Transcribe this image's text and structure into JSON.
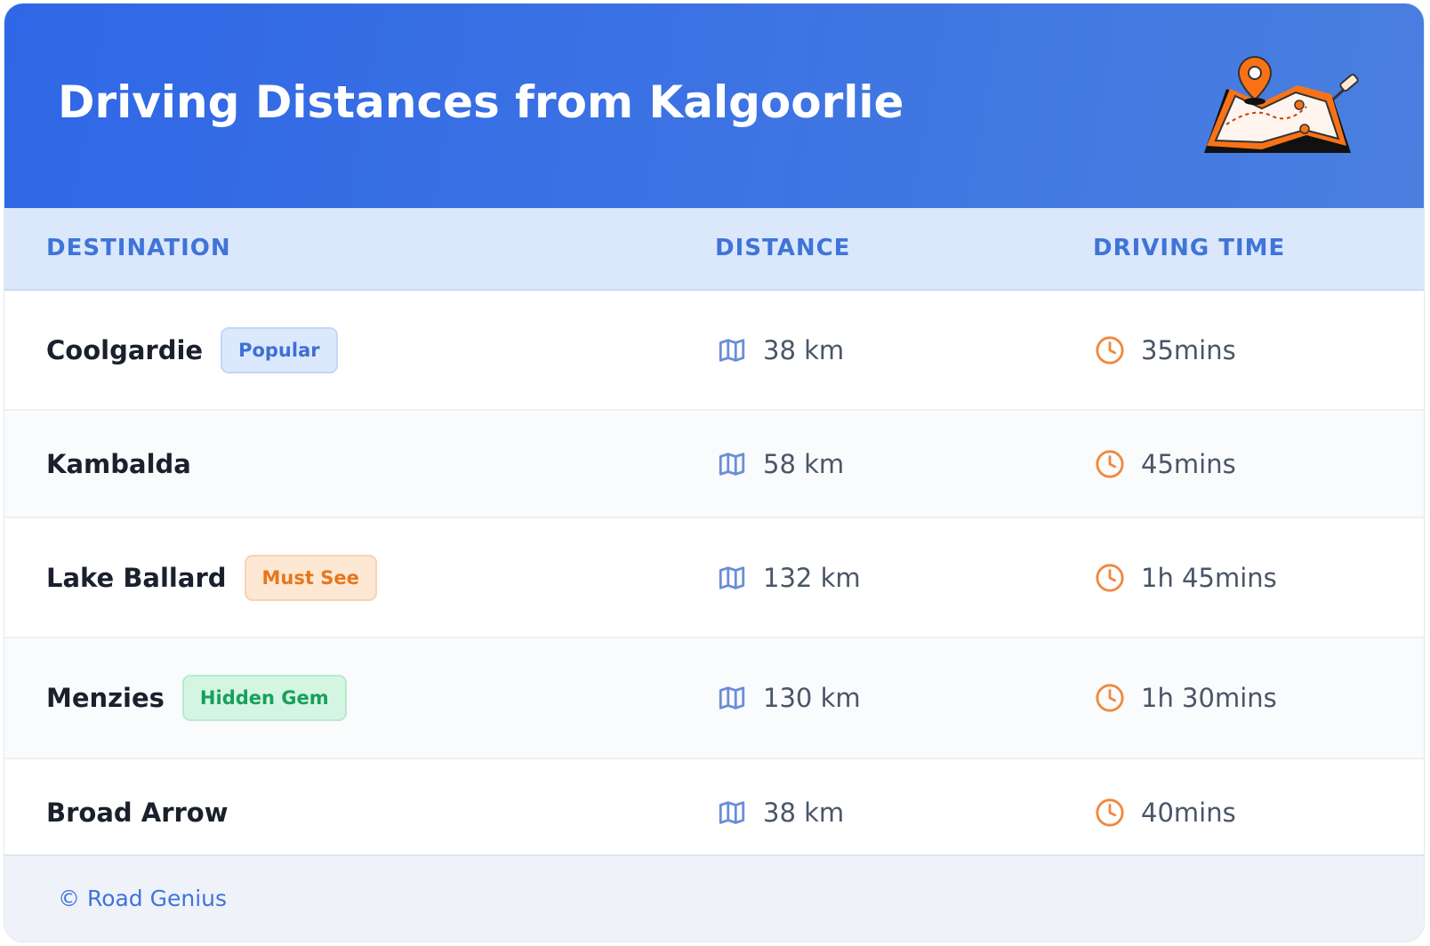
{
  "header": {
    "title": "Driving Distances from Kalgoorlie"
  },
  "table": {
    "columns": [
      "DESTINATION",
      "DISTANCE",
      "DRIVING TIME"
    ],
    "rows": [
      {
        "destination": "Coolgardie",
        "badge": "Popular",
        "badge_style": "blue",
        "distance": "38 km",
        "time": "35mins"
      },
      {
        "destination": "Kambalda",
        "distance": "58 km",
        "time": "45mins"
      },
      {
        "destination": "Lake Ballard",
        "badge": "Must See",
        "badge_style": "orange",
        "distance": "132 km",
        "time": "1h 45mins"
      },
      {
        "destination": "Menzies",
        "badge": "Hidden Gem",
        "badge_style": "green",
        "distance": "130 km",
        "time": "1h 30mins"
      },
      {
        "destination": "Broad Arrow",
        "distance": "38 km",
        "time": "40mins"
      }
    ]
  },
  "footer": {
    "credit": "© Road Genius"
  }
}
